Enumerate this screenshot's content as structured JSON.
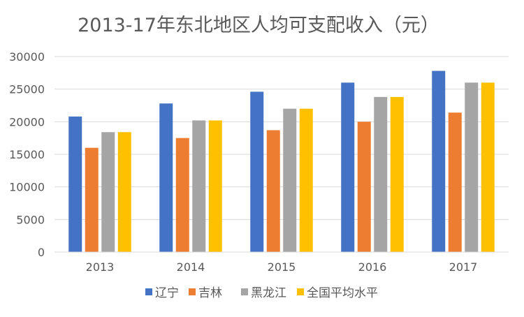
{
  "chart_data": {
    "type": "bar",
    "title": "2013-17年东北地区人均可支配收入（元）",
    "xlabel": "",
    "ylabel": "",
    "categories": [
      "2013",
      "2014",
      "2015",
      "2016",
      "2017"
    ],
    "ylim": [
      0,
      30000
    ],
    "yticks": [
      "0",
      "5000",
      "10000",
      "15000",
      "20000",
      "25000",
      "30000"
    ],
    "grid": true,
    "legend_position": "bottom",
    "series": [
      {
        "name": "辽宁",
        "color": "#4472C4",
        "values": [
          20800,
          22800,
          24600,
          26000,
          27800
        ]
      },
      {
        "name": "吉林",
        "color": "#ED7D31",
        "values": [
          16000,
          17500,
          18700,
          20000,
          21400
        ]
      },
      {
        "name": "黑龙江",
        "color": "#A5A5A5",
        "values": [
          18400,
          20200,
          22000,
          23800,
          26000
        ]
      },
      {
        "name": "全国平均水平",
        "color": "#FFC000",
        "values": [
          18400,
          20200,
          22000,
          23800,
          26000
        ]
      }
    ]
  }
}
